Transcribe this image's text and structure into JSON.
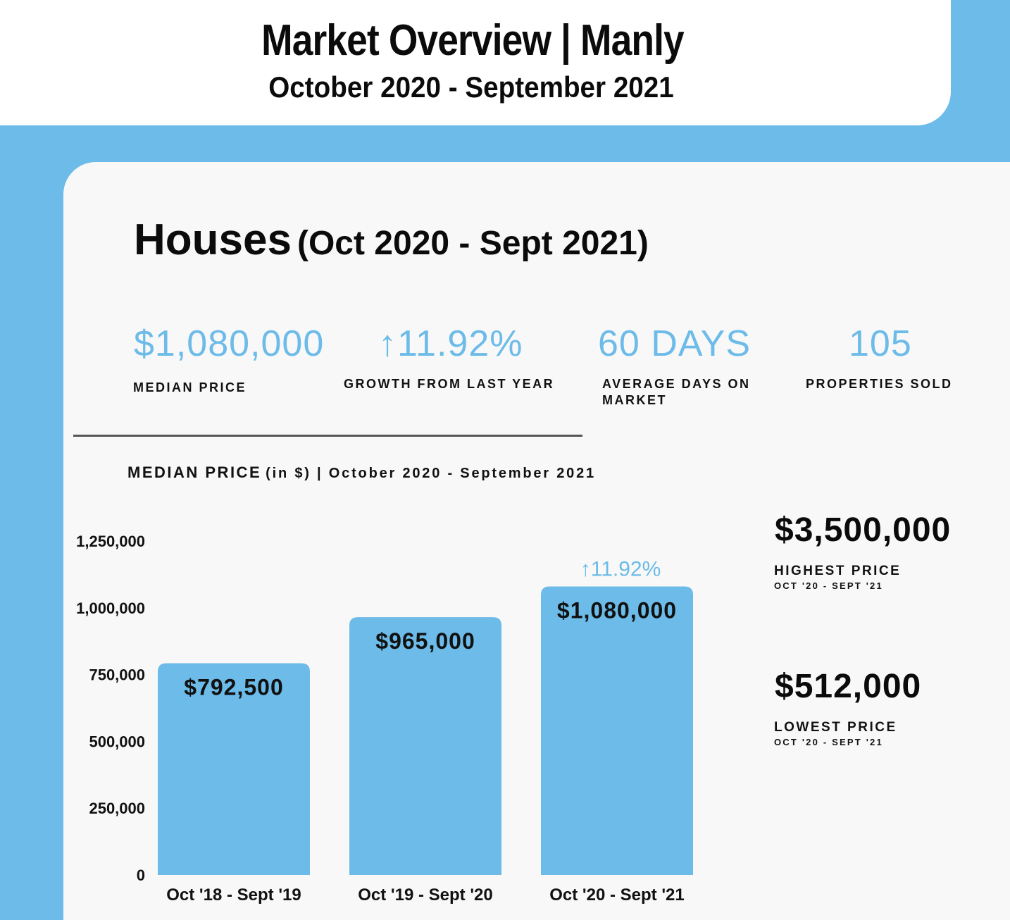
{
  "header": {
    "title": "Market Overview | Manly",
    "subtitle": "October 2020 - September 2021"
  },
  "section": {
    "heading": "Houses",
    "heading_period": "(Oct 2020 - Sept 2021)"
  },
  "stats": [
    {
      "value": "$1,080,000",
      "label": "MEDIAN PRICE"
    },
    {
      "value": "↑11.92%",
      "label": "GROWTH FROM LAST YEAR"
    },
    {
      "value": "60 DAYS",
      "label": "AVERAGE DAYS ON MARKET"
    },
    {
      "value": "105",
      "label": "PROPERTIES SOLD"
    }
  ],
  "side_stats": {
    "highest": {
      "value": "$3,500,000",
      "label": "HIGHEST PRICE",
      "period": "OCT '20 - SEPT '21"
    },
    "lowest": {
      "value": "$512,000",
      "label": "LOWEST PRICE",
      "period": "OCT '20 - SEPT '21"
    }
  },
  "colors": {
    "accent": "#6cbbe8",
    "text": "#111111",
    "card": "#f8f8f8"
  },
  "chart_data": {
    "type": "bar",
    "title": "MEDIAN PRICE",
    "subtitle": "(in $) | October 2020 - September 2021",
    "categories": [
      "Oct '18 - Sept '19",
      "Oct '19 - Sept '20",
      "Oct '20 - Sept '21"
    ],
    "values": [
      792500,
      965000,
      1080000
    ],
    "data_labels": [
      "$792,500",
      "$965,000",
      "$1,080,000"
    ],
    "annotation": {
      "category": "Oct '20 - Sept '21",
      "text": "↑11.92%"
    },
    "yticks": [
      0,
      250000,
      500000,
      750000,
      1000000,
      1250000
    ],
    "ytick_labels": [
      "0",
      "250,000",
      "500,000",
      "750,000",
      "1,000,000",
      "1,250,000"
    ],
    "ylim": [
      0,
      1250000
    ],
    "grid": false,
    "legend": "none"
  }
}
